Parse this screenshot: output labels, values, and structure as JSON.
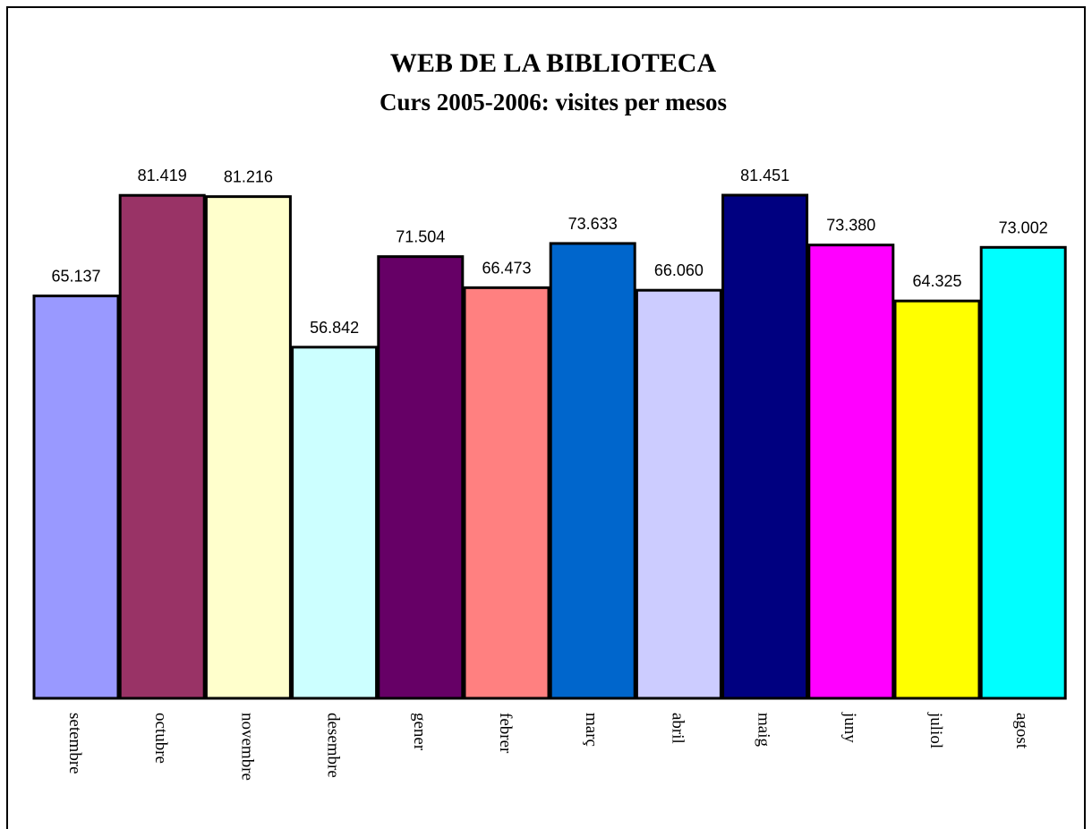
{
  "chart_data": {
    "type": "bar",
    "title": "WEB DE LA BIBLIOTECA",
    "subtitle": "Curs 2005-2006: visites per mesos",
    "categories": [
      "setembre",
      "octubre",
      "novembre",
      "desembre",
      "gener",
      "febrer",
      "març",
      "abril",
      "maig",
      "juny",
      "juliol",
      "agost"
    ],
    "values": [
      65137,
      81419,
      81216,
      56842,
      71504,
      66473,
      73633,
      66060,
      81451,
      73380,
      64325,
      73002
    ],
    "value_labels": [
      "65.137",
      "81.419",
      "81.216",
      "56.842",
      "71.504",
      "66.473",
      "73.633",
      "66.060",
      "81.451",
      "73.380",
      "64.325",
      "73.002"
    ],
    "colors": [
      "#9999ff",
      "#993366",
      "#ffffcc",
      "#ccffff",
      "#660066",
      "#ff8080",
      "#0066cc",
      "#ccccff",
      "#000080",
      "#ff00ff",
      "#ffff00",
      "#00ffff"
    ]
  }
}
